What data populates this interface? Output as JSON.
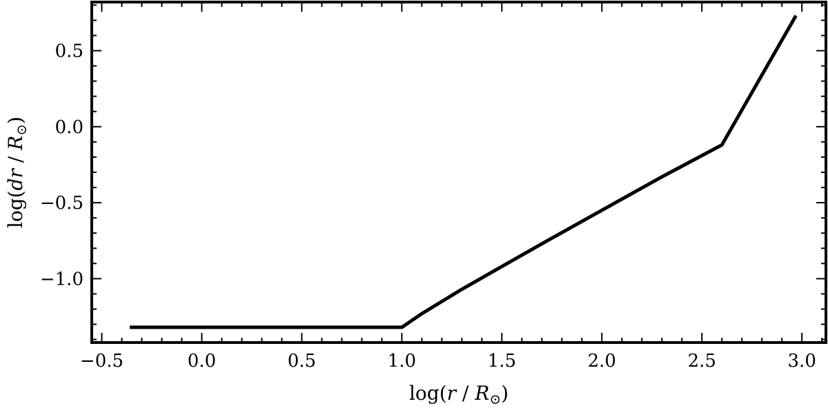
{
  "chart_data": {
    "type": "line",
    "title": "",
    "xlabel": {
      "pre": "log(",
      "var": "r",
      "mid": " / ",
      "unit": "R",
      "sub": "⊙",
      "post": ")"
    },
    "ylabel": {
      "pre": "log(",
      "var": "dr",
      "mid": " / ",
      "unit": "R",
      "sub": "⊙",
      "post": ")"
    },
    "xlim": [
      -0.55,
      3.12
    ],
    "ylim": [
      -1.42,
      0.82
    ],
    "xticks": [
      -0.5,
      0.0,
      0.5,
      1.0,
      1.5,
      2.0,
      2.5,
      3.0
    ],
    "xtick_labels": [
      "−0.5",
      "0.0",
      "0.5",
      "1.0",
      "1.5",
      "2.0",
      "2.5",
      "3.0"
    ],
    "yticks": [
      -1.0,
      -0.5,
      0.0,
      0.5
    ],
    "ytick_labels": [
      "−1.0",
      "−0.5",
      "0.0",
      "0.5"
    ],
    "x_minor_step": 0.1,
    "y_minor_step": 0.1,
    "grid": false,
    "legend": "none",
    "line_color": "#000000",
    "series": [
      {
        "x": [
          -0.36,
          1.0,
          1.1,
          1.3,
          1.5,
          1.7,
          2.0,
          2.3,
          2.6,
          2.97
        ],
        "y": [
          -1.32,
          -1.32,
          -1.23,
          -1.07,
          -0.92,
          -0.77,
          -0.55,
          -0.33,
          -0.12,
          0.73
        ]
      }
    ]
  }
}
